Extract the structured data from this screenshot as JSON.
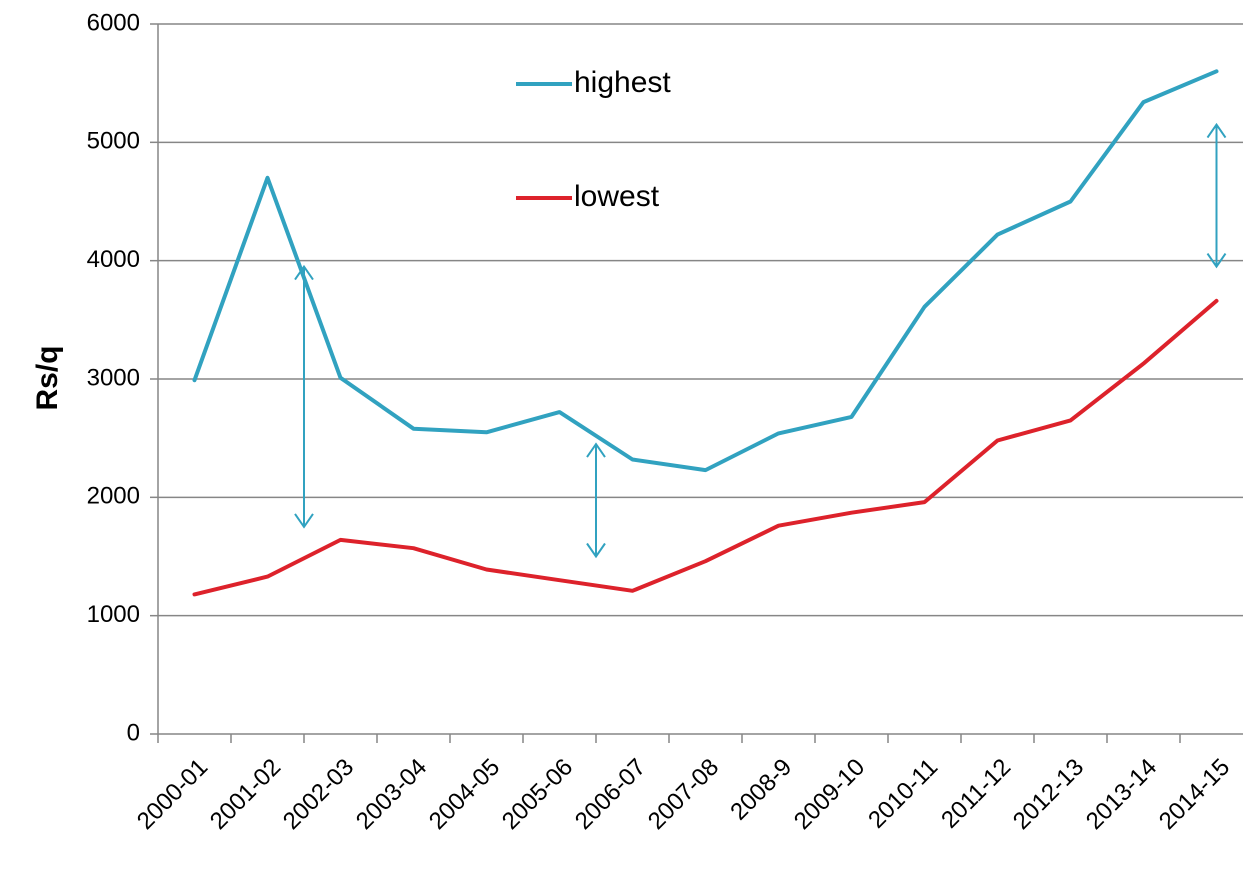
{
  "chart_data": {
    "type": "line",
    "title": "",
    "xlabel": "",
    "ylabel": "Rs/q",
    "ylim": [
      0,
      6000
    ],
    "yticks": [
      0,
      1000,
      2000,
      3000,
      4000,
      5000,
      6000
    ],
    "grid": "horizontal",
    "legend_position": "top-center",
    "categories": [
      "2000-01",
      "2001-02",
      "2002-03",
      "2003-04",
      "2004-05",
      "2005-06",
      "2006-07",
      "2007-08",
      "2008-9",
      "2009-10",
      "2010-11",
      "2011-12",
      "2012-13",
      "2013-14",
      "2014-15"
    ],
    "series": [
      {
        "name": "highest",
        "color": "#31A2C0",
        "values": [
          2990,
          4700,
          3010,
          2580,
          2550,
          2720,
          2320,
          2230,
          2540,
          2680,
          3610,
          4220,
          4500,
          5340,
          5600
        ]
      },
      {
        "name": "lowest",
        "color": "#DD222B",
        "values": [
          1180,
          1330,
          1640,
          1570,
          1390,
          1300,
          1210,
          1460,
          1760,
          1870,
          1960,
          2480,
          2650,
          3130,
          3660
        ]
      }
    ],
    "annotations": [
      {
        "type": "double-arrow",
        "color": "#31A2C0",
        "category": "2001-02",
        "offset": 0.5,
        "from": 1750,
        "to": 3950
      },
      {
        "type": "double-arrow",
        "color": "#31A2C0",
        "category": "2005-06",
        "offset": 0.5,
        "from": 1500,
        "to": 2450
      },
      {
        "type": "double-arrow",
        "color": "#31A2C0",
        "category": "2014-15",
        "offset": 0.0,
        "from": 3950,
        "to": 5150
      }
    ]
  }
}
